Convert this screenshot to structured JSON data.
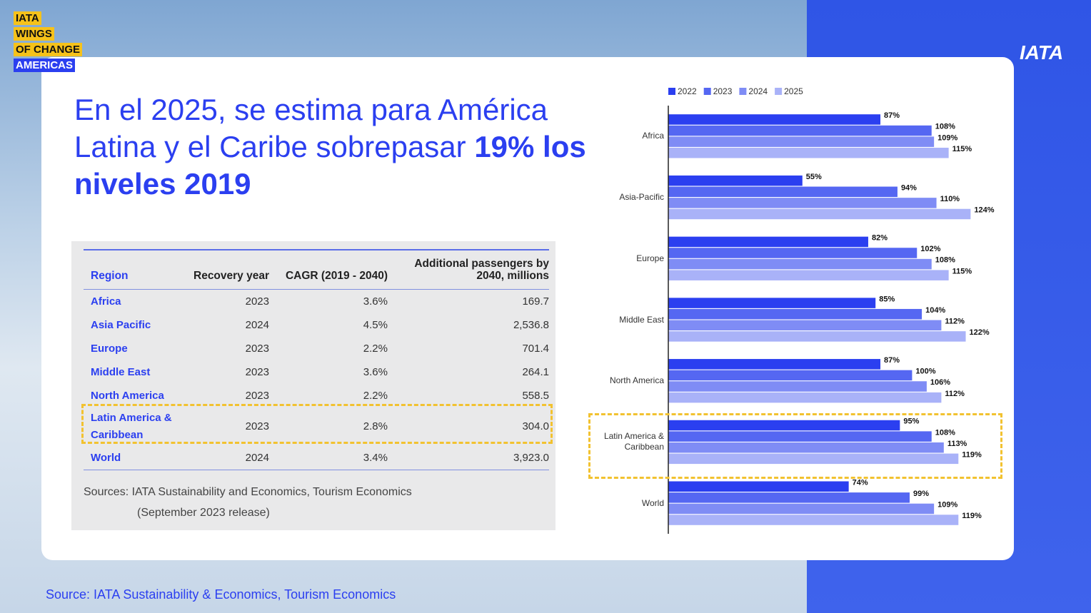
{
  "badge": [
    "IATA",
    "WINGS",
    "OF CHANGE",
    "AMERICAS"
  ],
  "logo": "IATA",
  "title": {
    "text": "En el 2025, se estima para América Latina y el Caribe sobrepasar",
    "emphasis": "19% los niveles 2019"
  },
  "table": {
    "header": [
      "Region",
      "Recovery year",
      "CAGR (2019 - 2040)",
      "Additional passengers by 2040, millions"
    ],
    "rows": [
      [
        "Africa",
        "2023",
        "3.6%",
        "169.7"
      ],
      [
        "Asia Pacific",
        "2024",
        "4.5%",
        "2,536.8"
      ],
      [
        "Europe",
        "2023",
        "2.2%",
        "701.4"
      ],
      [
        "Middle East",
        "2023",
        "3.6%",
        "264.1"
      ],
      [
        "North America",
        "2023",
        "2.2%",
        "558.5"
      ],
      [
        "Latin America & Caribbean",
        "2023",
        "2.8%",
        "304.0"
      ],
      [
        "World",
        "2024",
        "3.4%",
        "3,923.0"
      ]
    ]
  },
  "table_sources": [
    "Sources: IATA Sustainability and Economics, Tourism Economics",
    "(September 2023 release)"
  ],
  "source": "Source: IATA Sustainability & Economics, Tourism Economics",
  "chart_data": {
    "type": "bar",
    "orientation": "horizontal",
    "categories": [
      "Africa",
      "Asia-Pacific",
      "Europe",
      "Middle East",
      "North America",
      "Latin America & Caribbean",
      "World"
    ],
    "xlim": [
      0,
      140
    ],
    "series": [
      {
        "name": "2022",
        "color": "#2b3ff0",
        "values": [
          87,
          55,
          82,
          85,
          87,
          95,
          74
        ],
        "value_labels": [
          "87%",
          "55%",
          "82%",
          "85%",
          "87%",
          "95%",
          "74%"
        ]
      },
      {
        "name": "2023",
        "color": "#5567f2",
        "values": [
          108,
          94,
          102,
          104,
          100,
          108,
          99
        ],
        "value_labels": [
          "108%",
          "94%",
          "102%",
          "104%",
          "100%",
          "108%",
          "99%"
        ]
      },
      {
        "name": "2024",
        "color": "#7f8cf5",
        "values": [
          109,
          110,
          108,
          112,
          106,
          113,
          109
        ],
        "value_labels": [
          "109%",
          "110%",
          "108%",
          "112%",
          "106%",
          "113%",
          "109%"
        ]
      },
      {
        "name": "2025",
        "color": "#a9b2f8",
        "values": [
          115,
          124,
          115,
          122,
          112,
          119,
          119
        ],
        "value_labels": [
          "115%",
          "124%",
          "115%",
          "122%",
          "112%",
          "119%",
          "119%"
        ]
      }
    ]
  }
}
